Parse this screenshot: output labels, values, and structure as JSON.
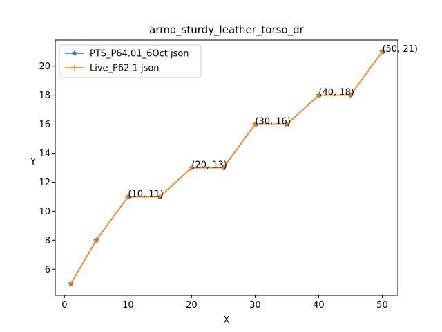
{
  "chart_data": {
    "type": "line",
    "title": "armo_sturdy_leather_torso_dr",
    "xlabel": "X",
    "ylabel": "Y",
    "xlim": [
      -1.45,
      52.45
    ],
    "ylim": [
      4.2,
      21.8
    ],
    "xticks": [
      0,
      10,
      20,
      30,
      40,
      50
    ],
    "yticks": [
      6,
      8,
      10,
      12,
      14,
      16,
      18,
      20
    ],
    "grid": false,
    "legend_position": "upper-left",
    "series": [
      {
        "name": "PTS_P64.01_6Oct json",
        "color": "#1f77b4",
        "marker": "star",
        "x": [
          1,
          5,
          10,
          15,
          20,
          25,
          30,
          35,
          40,
          45,
          50
        ],
        "y": [
          5,
          8,
          11,
          11,
          13,
          13,
          16,
          16,
          18,
          18,
          21
        ]
      },
      {
        "name": "Live_P62.1 json",
        "color": "#ff7f0e",
        "marker": "plus",
        "x": [
          1,
          5,
          10,
          15,
          20,
          25,
          30,
          35,
          40,
          45,
          50
        ],
        "y": [
          5,
          8,
          11,
          11,
          13,
          13,
          16,
          16,
          18,
          18,
          21
        ]
      }
    ],
    "annotations": [
      {
        "text": "(10, 11)",
        "x": 10,
        "y": 11
      },
      {
        "text": "(20, 13)",
        "x": 20,
        "y": 13
      },
      {
        "text": "(30, 16)",
        "x": 30,
        "y": 16
      },
      {
        "text": "(40, 18)",
        "x": 40,
        "y": 18
      },
      {
        "text": "(50, 21)",
        "x": 50,
        "y": 21
      }
    ]
  }
}
